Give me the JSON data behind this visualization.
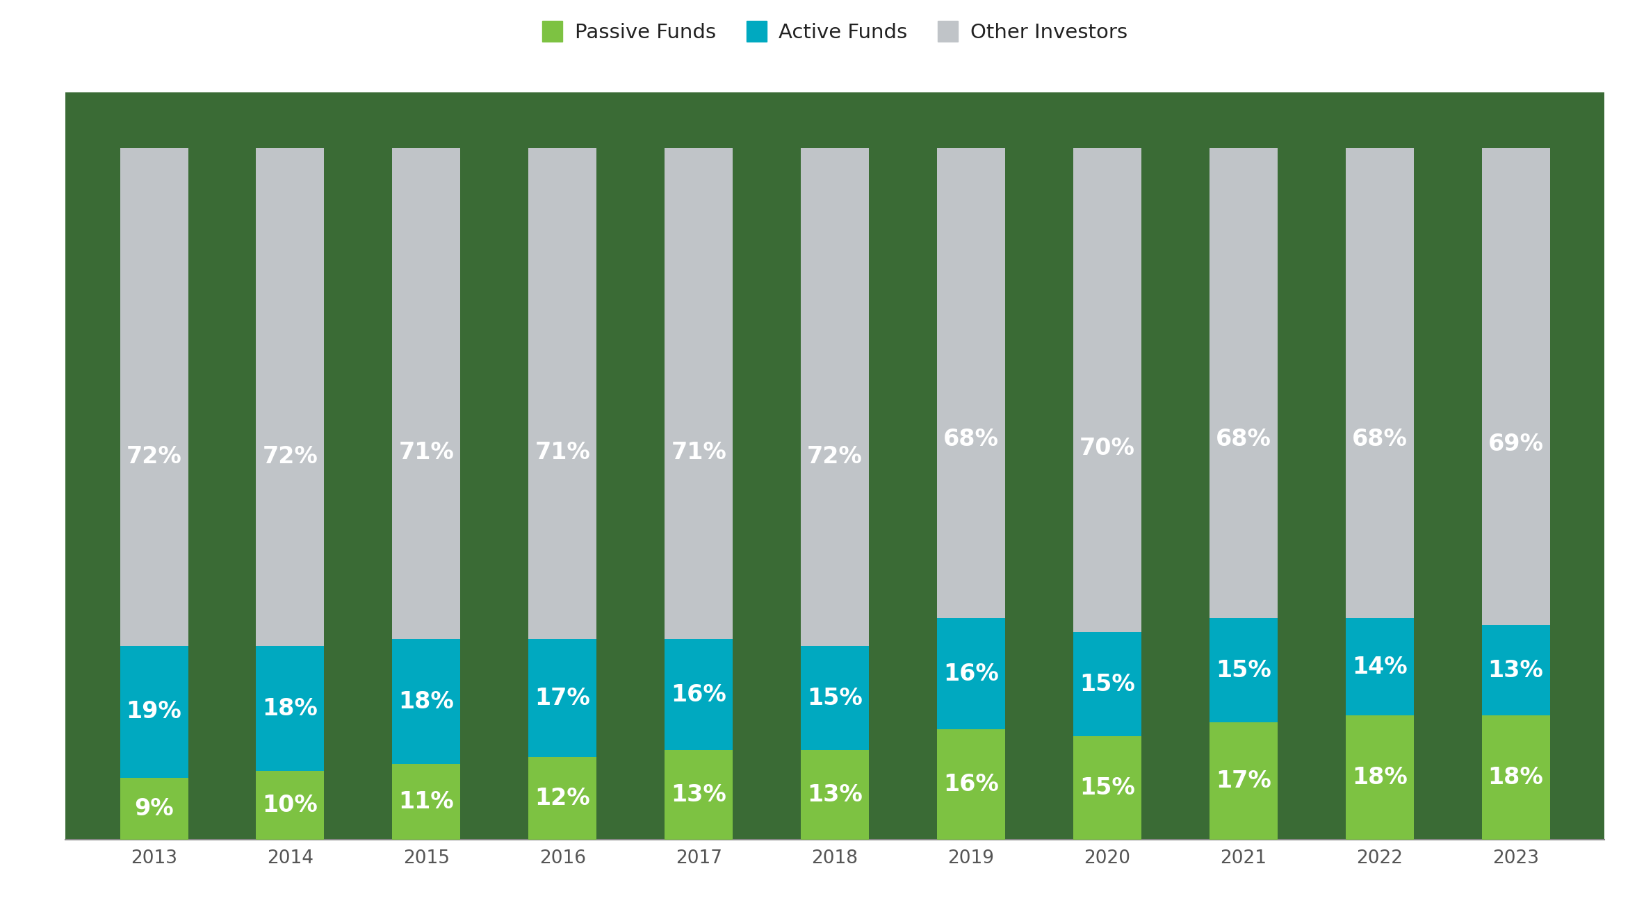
{
  "years": [
    "2013",
    "2014",
    "2015",
    "2016",
    "2017",
    "2018",
    "2019",
    "2020",
    "2021",
    "2022",
    "2023"
  ],
  "passive": [
    9,
    10,
    11,
    12,
    13,
    13,
    16,
    15,
    17,
    18,
    18
  ],
  "active": [
    19,
    18,
    18,
    17,
    16,
    15,
    16,
    15,
    15,
    14,
    13
  ],
  "other": [
    72,
    72,
    71,
    71,
    71,
    72,
    68,
    70,
    68,
    68,
    69
  ],
  "passive_color": "#7DC242",
  "active_color": "#00A9C0",
  "other_color": "#C0C4C8",
  "background_color": "#3A6B35",
  "figure_bg_color": "#FFFFFF",
  "text_color_bars": "#FFFFFF",
  "tick_color": "#555555",
  "bar_width": 0.5,
  "legend_labels": [
    "Passive Funds",
    "Active Funds",
    "Other Investors"
  ],
  "label_fontsize": 24,
  "tick_fontsize": 19,
  "legend_fontsize": 21,
  "ylim_max": 108
}
